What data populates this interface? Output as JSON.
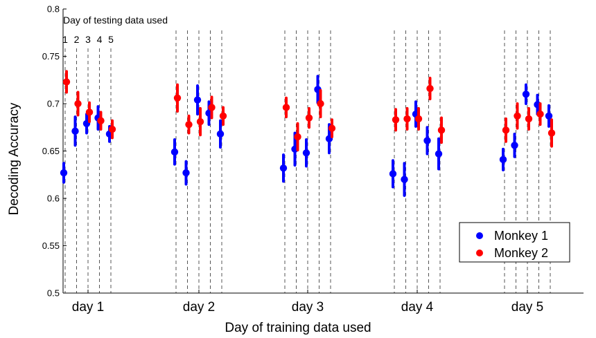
{
  "chart_data": {
    "type": "scatter",
    "title": "",
    "xlabel": "Day of training data used",
    "ylabel": "Decoding Accuracy",
    "ylim": [
      0.5,
      0.8
    ],
    "yticks": [
      "0.5",
      "0.55",
      "0.6",
      "0.65",
      "0.7",
      "0.75",
      "0.8"
    ],
    "categories": [
      "day 1",
      "day 2",
      "day 3",
      "day 4",
      "day 5"
    ],
    "annotation_title": "Day of testing data used",
    "annotation_sublabels": [
      "1",
      "2",
      "3",
      "4",
      "5"
    ],
    "legend": {
      "placement": "lower-right",
      "entries": [
        "Monkey 1",
        "Monkey 2"
      ]
    },
    "grid": false,
    "series": [
      {
        "name": "Monkey 1",
        "color": "#0000ff",
        "values": [
          [
            0.627,
            0.671,
            0.679,
            0.685,
            0.668
          ],
          [
            0.649,
            0.627,
            0.704,
            0.69,
            0.668
          ],
          [
            0.632,
            0.652,
            0.648,
            0.715,
            0.663
          ],
          [
            0.626,
            0.62,
            0.689,
            0.661,
            0.647
          ],
          [
            0.641,
            0.656,
            0.71,
            0.699,
            0.687
          ]
        ],
        "errors": [
          [
            0.01,
            0.015,
            0.01,
            0.012,
            0.008
          ],
          [
            0.013,
            0.012,
            0.015,
            0.012,
            0.014
          ],
          [
            0.014,
            0.017,
            0.014,
            0.014,
            0.015
          ],
          [
            0.014,
            0.017,
            0.013,
            0.014,
            0.016
          ],
          [
            0.011,
            0.012,
            0.01,
            0.01,
            0.011
          ]
        ]
      },
      {
        "name": "Monkey 2",
        "color": "#ff0000",
        "values": [
          [
            0.723,
            0.7,
            0.691,
            0.682,
            0.673
          ],
          [
            0.706,
            0.678,
            0.681,
            0.696,
            0.687
          ],
          [
            0.696,
            0.665,
            0.685,
            0.7,
            0.674
          ],
          [
            0.683,
            0.684,
            0.684,
            0.716,
            0.672
          ],
          [
            0.672,
            0.687,
            0.684,
            0.689,
            0.669
          ]
        ],
        "errors": [
          [
            0.011,
            0.012,
            0.01,
            0.009,
            0.009
          ],
          [
            0.014,
            0.009,
            0.014,
            0.011,
            0.009
          ],
          [
            0.01,
            0.014,
            0.01,
            0.014,
            0.009
          ],
          [
            0.011,
            0.011,
            0.011,
            0.011,
            0.013
          ],
          [
            0.012,
            0.013,
            0.011,
            0.011,
            0.014
          ]
        ]
      }
    ]
  }
}
